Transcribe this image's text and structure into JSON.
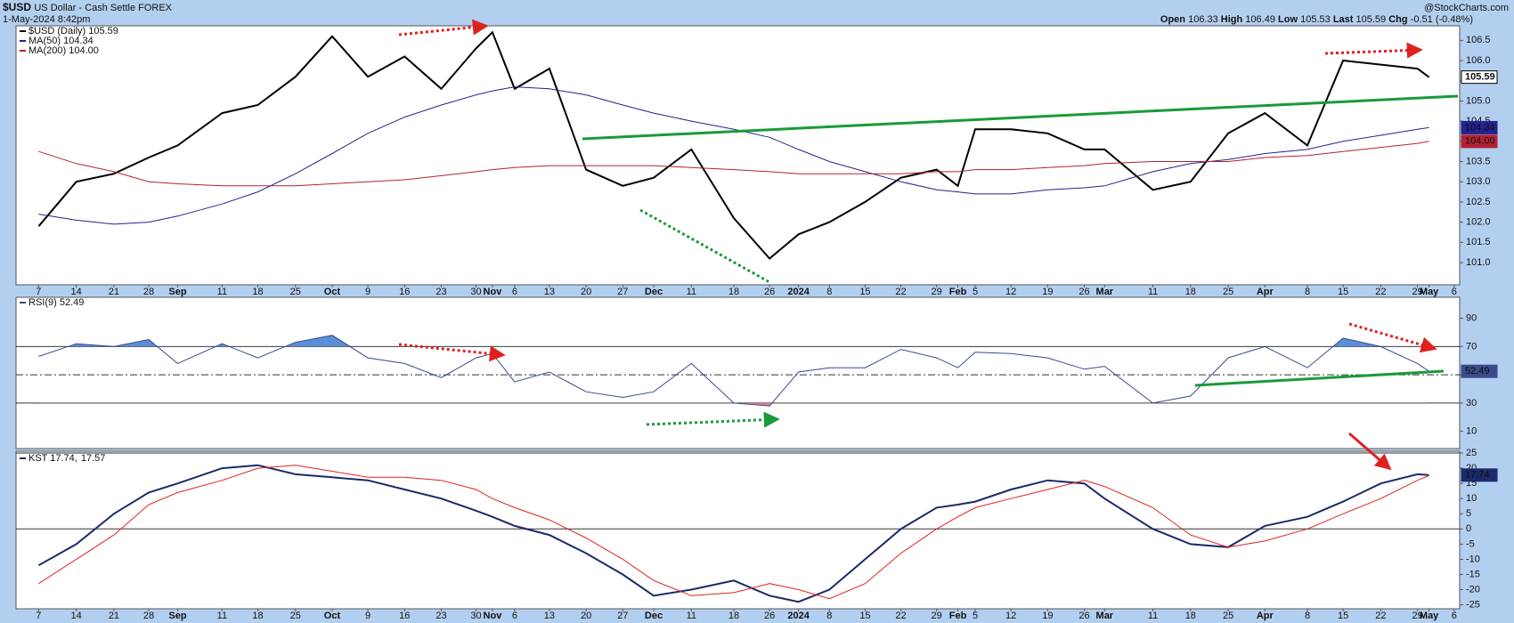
{
  "header": {
    "symbol": "$USD",
    "description": "US Dollar - Cash Settle FOREX",
    "date": "1-May-2024 8:42pm",
    "source": "@StockCharts.com",
    "open_label": "Open",
    "open": 106.33,
    "high_label": "High",
    "high": 106.49,
    "low_label": "Low",
    "low": 105.53,
    "last_label": "Last",
    "last": 105.59,
    "chg_label": "Chg",
    "chg": -0.51,
    "chg_pct": {
      "value": -0.48,
      "label": "(-0.48%)"
    }
  },
  "chart_data": [
    {
      "type": "line",
      "categories": [
        "7",
        "14",
        "21",
        "28",
        "Sep",
        "11",
        "18",
        "25",
        "Oct",
        "9",
        "16",
        "23",
        "30",
        "Nov",
        "6",
        "13",
        "20",
        "27",
        "Dec",
        "11",
        "18",
        "26",
        "2024",
        "8",
        "15",
        "22",
        "29",
        "Feb",
        "5",
        "12",
        "19",
        "26",
        "Mar",
        "11",
        "18",
        "25",
        "Apr",
        "8",
        "15",
        "22",
        "29",
        "May",
        "6"
      ],
      "series": [
        {
          "name": "$USD (Daily) 105.59",
          "color": "#000000",
          "width": 2,
          "tag": true,
          "values": [
            101.9,
            103.0,
            103.2,
            103.6,
            103.9,
            104.7,
            104.9,
            105.6,
            106.6,
            105.6,
            106.1,
            105.3,
            106.3,
            106.7,
            105.3,
            105.8,
            103.3,
            102.9,
            103.1,
            103.8,
            102.1,
            101.1,
            101.7,
            102.0,
            102.5,
            103.1,
            103.3,
            102.9,
            104.3,
            104.3,
            104.2,
            103.8,
            103.8,
            102.8,
            103.0,
            104.2,
            104.7,
            103.9,
            106.0,
            105.9,
            105.8,
            105.59,
            null
          ]
        },
        {
          "name": "MA(50) 104.34",
          "color": "#23238e",
          "width": 1,
          "tag": true,
          "values": [
            102.2,
            102.05,
            101.95,
            102.0,
            102.15,
            102.45,
            102.75,
            103.2,
            103.7,
            104.2,
            104.6,
            104.9,
            105.15,
            105.25,
            105.35,
            105.3,
            105.15,
            104.9,
            104.7,
            104.5,
            104.3,
            104.1,
            103.8,
            103.5,
            103.25,
            103.0,
            102.8,
            102.75,
            102.7,
            102.7,
            102.8,
            102.85,
            102.9,
            103.25,
            103.45,
            103.55,
            103.7,
            103.8,
            104.0,
            104.15,
            104.3,
            104.34,
            null
          ]
        },
        {
          "name": "MA(200) 104.00",
          "color": "#b22234",
          "width": 1,
          "tag": true,
          "values": [
            103.75,
            103.45,
            103.25,
            103.0,
            102.95,
            102.9,
            102.9,
            102.9,
            102.95,
            103.0,
            103.05,
            103.15,
            103.25,
            103.3,
            103.35,
            103.4,
            103.4,
            103.4,
            103.4,
            103.35,
            103.3,
            103.25,
            103.2,
            103.2,
            103.2,
            103.2,
            103.25,
            103.25,
            103.3,
            103.3,
            103.35,
            103.4,
            103.45,
            103.5,
            103.5,
            103.5,
            103.6,
            103.65,
            103.75,
            103.85,
            103.95,
            104.0,
            null
          ],
          "value_labels": [
            null,
            null,
            null,
            null,
            null,
            null,
            null,
            null,
            null,
            null,
            null,
            null,
            null,
            null,
            null,
            null,
            null,
            null,
            null,
            null,
            null,
            null,
            null,
            null,
            null,
            null,
            null,
            null,
            null,
            null,
            null,
            null,
            null,
            null,
            null,
            null,
            null,
            null,
            null,
            null,
            null,
            "104.00",
            null
          ]
        }
      ],
      "ylim": [
        100.45,
        106.86
      ],
      "yticks": [
        {
          "value": 101,
          "label": "101.0"
        },
        101.5,
        {
          "value": 102,
          "label": "102.0"
        },
        102.5,
        {
          "value": 103,
          "label": "103.0"
        },
        103.5,
        {
          "value": 104,
          "label": "104.0"
        },
        104.5,
        {
          "value": 105,
          "label": "105.0"
        },
        105.5,
        {
          "value": 106,
          "label": "106.0"
        },
        106.5
      ],
      "grid": false
    },
    {
      "type": "line",
      "series": [
        {
          "name": "RSI(9) 52.49",
          "color": "#3a4a8a",
          "width": 1,
          "tag": true,
          "values": [
            63,
            72,
            70,
            75,
            58,
            72,
            62,
            73,
            78,
            62,
            58,
            48,
            62,
            65,
            45,
            52,
            38,
            34,
            38,
            58,
            30,
            28,
            52,
            55,
            55,
            68,
            62,
            55,
            66,
            65,
            62,
            54,
            56,
            30,
            35,
            62,
            70,
            55,
            76,
            70,
            58,
            52.49,
            null
          ]
        }
      ],
      "ylim": [
        -2.2,
        104.9
      ],
      "yticks": [
        10,
        30,
        50,
        70,
        90
      ],
      "ref_lines": [
        {
          "value": 70,
          "style": "solid"
        },
        {
          "value": 50,
          "style": "dashdot"
        },
        {
          "value": 30,
          "style": "solid"
        }
      ],
      "fill_above": {
        "value": 70,
        "color": "#5b8fd8"
      },
      "fill_below": {
        "value": 30,
        "color": "#e0809a"
      },
      "grid": false
    },
    {
      "type": "line",
      "categories": [
        "7",
        "14",
        "21",
        "28",
        "Sep",
        "11",
        "18",
        "25",
        "Oct",
        "9",
        "16",
        "23",
        "30",
        "Nov",
        "6",
        "13",
        "20",
        "27",
        "Dec",
        "11",
        "18",
        "26",
        "2024",
        "8",
        "15",
        "22",
        "29",
        "Feb",
        "5",
        "12",
        "19",
        "26",
        "Mar",
        "11",
        "18",
        "25",
        "Apr",
        "8",
        "15",
        "22",
        "29",
        "May",
        "6"
      ],
      "series": [
        {
          "name": "KST 17.74,",
          "color": "#1a2a6a",
          "width": 2,
          "tag": true,
          "values": [
            -12,
            -5,
            5,
            12,
            15,
            20,
            21,
            18,
            17,
            16,
            13,
            10,
            6,
            4,
            1,
            -2,
            -8,
            -15,
            -22,
            -20,
            -17,
            -22,
            -24,
            -20,
            -10,
            0,
            7,
            8,
            9,
            13,
            16,
            15,
            10,
            0,
            -5,
            -6,
            1,
            4,
            9,
            15,
            18,
            17.74,
            null
          ]
        },
        {
          "name": "17.57",
          "color": "#e02020",
          "width": 1,
          "tag": false,
          "values": [
            -18,
            -10,
            -2,
            8,
            12,
            16,
            20,
            21,
            19,
            17,
            17,
            16,
            13,
            10,
            7,
            3,
            -3,
            -10,
            -17,
            -22,
            -21,
            -18,
            -20,
            -23,
            -18,
            -8,
            0,
            4,
            7,
            10,
            13,
            16,
            14,
            7,
            -2,
            -6,
            -4,
            0,
            5,
            10,
            16,
            17.57,
            null
          ]
        }
      ],
      "ylim": [
        -26.3,
        25.6
      ],
      "yticks": [
        25,
        20,
        15,
        10,
        5,
        0,
        -5,
        -10,
        -15,
        -20,
        -25
      ],
      "ref_lines": [
        {
          "value": 25,
          "style": "solid"
        },
        {
          "value": 0,
          "style": "solid"
        }
      ],
      "grid": false
    }
  ]
}
